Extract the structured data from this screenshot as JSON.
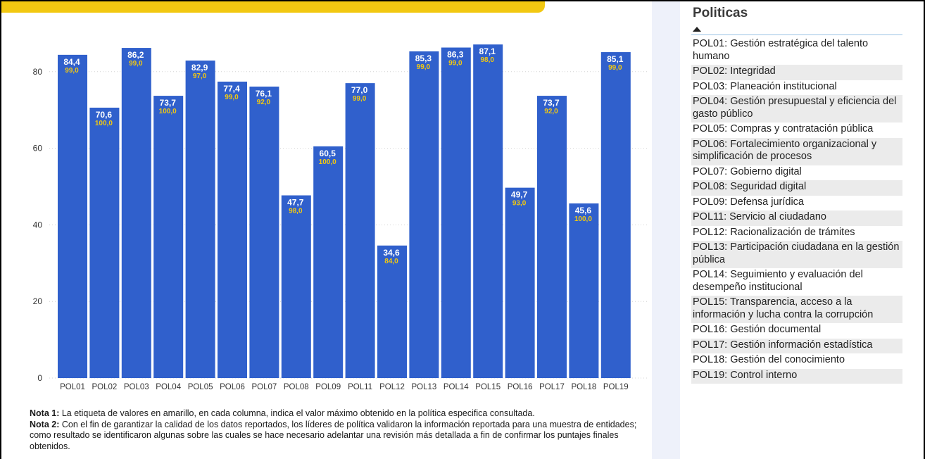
{
  "colors": {
    "bar": "#3060cc",
    "value_label": "#ffffff",
    "max_label": "#f2c811",
    "axis_text": "#333333",
    "grid": "#d4d4d4",
    "accent_strip": "#f2c811"
  },
  "chart_data": {
    "type": "bar",
    "categories": [
      "POL01",
      "POL02",
      "POL03",
      "POL04",
      "POL05",
      "POL06",
      "POL07",
      "POL08",
      "POL09",
      "POL11",
      "POL12",
      "POL13",
      "POL14",
      "POL15",
      "POL16",
      "POL17",
      "POL18",
      "POL19"
    ],
    "series": [
      {
        "values": [
          84.4,
          70.6,
          86.2,
          73.7,
          82.9,
          77.4,
          76.1,
          47.7,
          60.5,
          77.0,
          34.6,
          85.3,
          86.3,
          87.1,
          49.7,
          73.7,
          45.6,
          85.1
        ]
      },
      {
        "values": [
          99.0,
          100.0,
          99.0,
          100.0,
          97.0,
          99.0,
          92.0,
          98.0,
          100.0,
          99.0,
          84.0,
          99.0,
          99.0,
          98.0,
          93.0,
          92.0,
          100.0,
          99.0
        ]
      }
    ],
    "value_labels": [
      "84,4",
      "70,6",
      "86,2",
      "73,7",
      "82,9",
      "77,4",
      "76,1",
      "47,7",
      "60,5",
      "77,0",
      "34,6",
      "85,3",
      "86,3",
      "87,1",
      "49,7",
      "73,7",
      "45,6",
      "85,1"
    ],
    "max_labels": [
      "99,0",
      "100,0",
      "99,0",
      "100,0",
      "97,0",
      "99,0",
      "92,0",
      "98,0",
      "100,0",
      "99,0",
      "84,0",
      "99,0",
      "99,0",
      "98,0",
      "93,0",
      "92,0",
      "100,0",
      "99,0"
    ],
    "y_ticks": [
      0,
      20,
      40,
      60,
      80
    ],
    "ylim": [
      0,
      100
    ],
    "grid": true,
    "legend": "right"
  },
  "notes": {
    "note1_label": "Nota 1:",
    "note1_text": " La etiqueta de valores en amarillo, en cada columna, indica el valor máximo obtenido en la política especifica consultada.",
    "note2_label": "Nota 2:",
    "note2_text": " Con el fin de garantizar la calidad de los datos reportados, los líderes de política validaron la información reportada para una muestra de entidades; como resultado se identificaron algunas sobre las cuales se hace necesario adelantar una revisión más detallada a fin de confirmar los puntajes finales obtenidos."
  },
  "legend_panel": {
    "title": "Politicas",
    "items": [
      "POL01: Gestión estratégica del talento humano",
      "POL02: Integridad",
      "POL03: Planeación institucional",
      "POL04: Gestión presupuestal y eficiencia del gasto público",
      "POL05: Compras y contratación pública",
      "POL06: Fortalecimiento organizacional y simplificación de procesos",
      "POL07: Gobierno digital",
      "POL08: Seguridad digital",
      "POL09: Defensa jurídica",
      "POL11: Servicio al ciudadano",
      "POL12: Racionalización de trámites",
      "POL13: Participación ciudadana en la gestión pública",
      "POL14: Seguimiento y evaluación del desempeño institucional",
      "POL15: Transparencia, acceso a la información y lucha contra la corrupción",
      "POL16: Gestión documental",
      "POL17: Gestión información estadística",
      "POL18: Gestión del conocimiento",
      "POL19: Control interno"
    ]
  }
}
